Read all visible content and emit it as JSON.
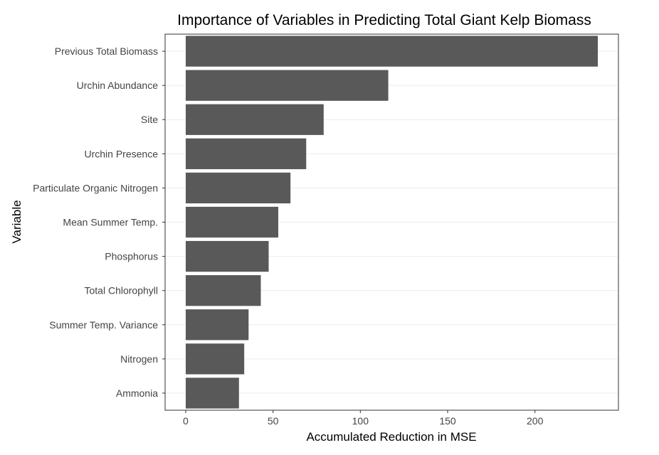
{
  "chart_data": {
    "type": "bar",
    "orientation": "horizontal",
    "title": "Importance of Variables in Predicting Total Giant Kelp Biomass",
    "xlabel": "Accumulated Reduction in MSE",
    "ylabel": "Variable",
    "categories": [
      "Previous Total Biomass",
      "Urchin Abundance",
      "Site",
      "Urchin Presence",
      "Particulate Organic Nitrogen",
      "Mean Summer Temp.",
      "Phosphorus",
      "Total Chlorophyll",
      "Summer Temp. Variance",
      "Nitrogen",
      "Ammonia"
    ],
    "values": [
      236,
      116,
      79,
      69,
      60,
      53,
      47.5,
      43,
      36,
      33.5,
      30.5
    ],
    "xlim": [
      -11.8,
      247.8
    ],
    "xticks": [
      0,
      50,
      100,
      150,
      200
    ],
    "bar_color": "#595959",
    "grid": true
  }
}
